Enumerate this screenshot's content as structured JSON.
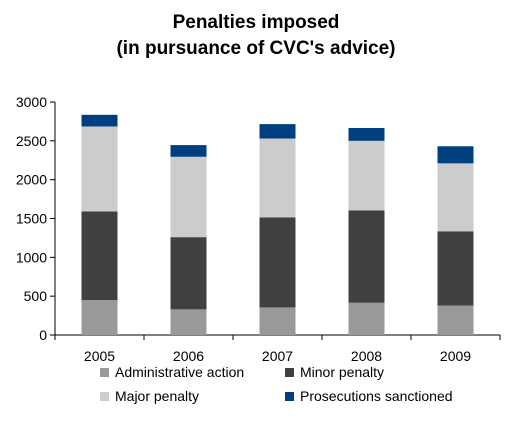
{
  "chart_data": {
    "type": "bar",
    "stacked": true,
    "title": "Penalties imposed",
    "subtitle": "(in pursuance of CVC's advice)",
    "categories": [
      "2005",
      "2006",
      "2007",
      "2008",
      "2009"
    ],
    "ylim": [
      0,
      3000
    ],
    "yticks": [
      0,
      500,
      1000,
      1500,
      2000,
      2500,
      3000
    ],
    "xlabel": "",
    "ylabel": "",
    "grid": false,
    "legend_position": "bottom",
    "series": [
      {
        "name": "Administrative action",
        "color": "#999999",
        "values": [
          450,
          330,
          355,
          415,
          380
        ]
      },
      {
        "name": "Minor penalty",
        "color": "#404040",
        "values": [
          1140,
          930,
          1160,
          1190,
          955
        ]
      },
      {
        "name": "Major penalty",
        "color": "#cccccc",
        "values": [
          1095,
          1035,
          1015,
          895,
          875
        ]
      },
      {
        "name": "Prosecutions sanctioned",
        "color": "#003f7f",
        "values": [
          150,
          150,
          185,
          165,
          220
        ]
      }
    ]
  }
}
